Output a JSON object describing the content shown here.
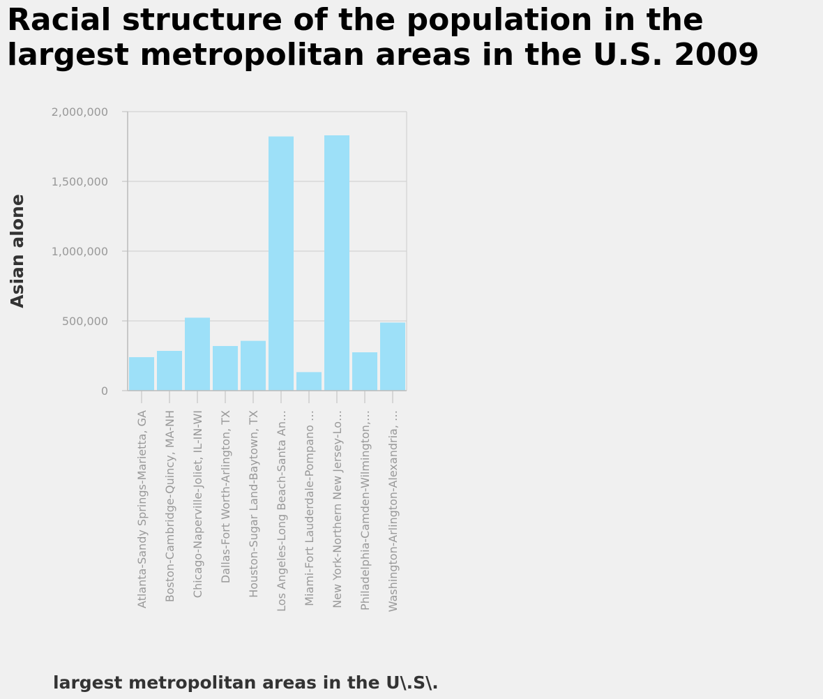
{
  "chart_data": {
    "type": "bar",
    "title": "Racial structure of the population in the largest metropolitan areas in the U.S. 2009",
    "xlabel": "largest metropolitan areas in the U\\.S\\.",
    "ylabel": "Asian alone",
    "categories": [
      "Atlanta-Sandy Springs-Marietta, GA",
      "Boston-Cambridge-Quincy, MA-NH",
      "Chicago-Naperville-Joliet, IL-IN-WI",
      "Dallas-Fort Worth-Arlington, TX",
      "Houston-Sugar Land-Baytown, TX",
      "Los Angeles-Long Beach-Santa An…",
      "Miami-Fort Lauderdale-Pompano …",
      "New York-Northern New Jersey-Lo…",
      "Philadelphia-Camden-Wilmington,…",
      "Washington-Arlington-Alexandria, …"
    ],
    "series": [
      {
        "values": [
          240000,
          285000,
          523000,
          320000,
          357000,
          1822000,
          133000,
          1830000,
          275000,
          488000
        ]
      }
    ],
    "ylim": [
      0,
      2000000
    ],
    "yticks": [
      0,
      500000,
      1000000,
      1500000,
      2000000
    ],
    "ytick_labels": [
      "0",
      "500,000",
      "1,000,000",
      "1,500,000",
      "2,000,000"
    ],
    "grid": true,
    "legend": "none",
    "colors": {
      "bar": "#9de0f8",
      "grid": "#cccccc",
      "axis": "#bbbbbb",
      "tick_label": "#999999",
      "axis_label": "#333333",
      "title": "#000000",
      "background": "#f0f0f0"
    }
  }
}
